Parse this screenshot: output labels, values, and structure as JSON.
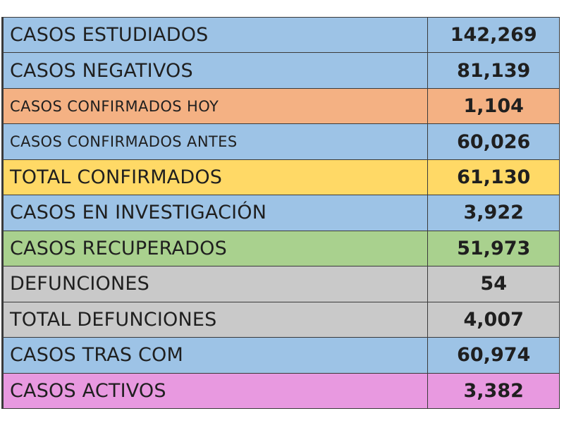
{
  "rows": [
    {
      "label": "CASOS ESTUDIADOS",
      "value": "142,269",
      "color": "#9dc3e6",
      "size": "normal"
    },
    {
      "label": "CASOS NEGATIVOS",
      "value": "81,139",
      "color": "#9dc3e6",
      "size": "normal"
    },
    {
      "label": "CASOS CONFIRMADOS HOY",
      "value": "1,104",
      "color": "#f4b183",
      "size": "small"
    },
    {
      "label": "CASOS CONFIRMADOS ANTES",
      "value": "60,026",
      "color": "#9dc3e6",
      "size": "small"
    },
    {
      "label": "TOTAL CONFIRMADOS",
      "value": "61,130",
      "color": "#ffd966",
      "size": "normal"
    },
    {
      "label": "CASOS EN INVESTIGACIÓN",
      "value": "3,922",
      "color": "#9dc3e6",
      "size": "normal"
    },
    {
      "label": "CASOS RECUPERADOS",
      "value": "51,973",
      "color": "#a9d18e",
      "size": "normal"
    },
    {
      "label": "DEFUNCIONES",
      "value": "54",
      "color": "#c9c9c9",
      "size": "normal"
    },
    {
      "label": "TOTAL DEFUNCIONES",
      "value": "4,007",
      "color": "#c9c9c9",
      "size": "normal"
    },
    {
      "label": "CASOS TRAS COM",
      "value": "60,974",
      "color": "#9dc3e6",
      "size": "normal"
    },
    {
      "label": "CASOS ACTIVOS",
      "value": "3,382",
      "color": "#e899e0",
      "size": "normal"
    }
  ]
}
